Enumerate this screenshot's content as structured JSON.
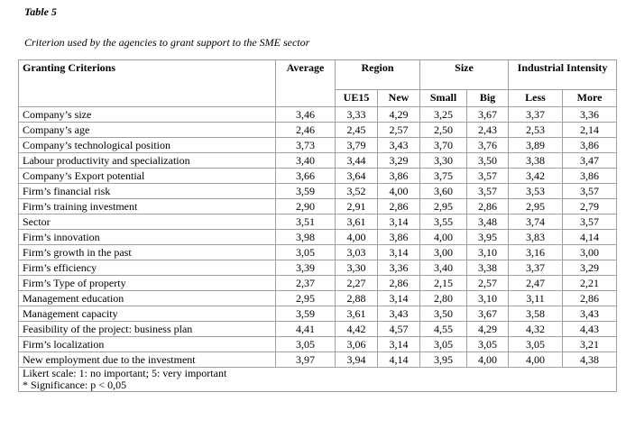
{
  "caption": {
    "title": "Table 5",
    "subtitle": "Criterion used by the agencies to grant support to the SME sector"
  },
  "header": {
    "criterion": "Granting Criterions",
    "average": "Average",
    "region": "Region",
    "size": "Size",
    "industrial": "Industrial Intensity",
    "sub": [
      "UE15",
      "New",
      "Small",
      "Big",
      "Less",
      "More"
    ]
  },
  "rows": [
    {
      "label": "Company’s size",
      "values": [
        "3,46",
        "3,33",
        "4,29",
        "3,25",
        "3,67",
        "3,37",
        "3,36"
      ]
    },
    {
      "label": "Company’s age",
      "values": [
        "2,46",
        "2,45",
        "2,57",
        "2,50",
        "2,43",
        "2,53",
        "2,14"
      ]
    },
    {
      "label": "Company’s technological position",
      "values": [
        "3,73",
        "3,79",
        "3,43",
        "3,70",
        "3,76",
        "3,89",
        "3,86"
      ]
    },
    {
      "label": "Labour productivity and specialization",
      "values": [
        "3,40",
        "3,44",
        "3,29",
        "3,30",
        "3,50",
        "3,38",
        "3,47"
      ]
    },
    {
      "label": "Company’s Export potential",
      "values": [
        "3,66",
        "3,64",
        "3,86",
        "3,75",
        "3,57",
        "3,42",
        "3,86"
      ]
    },
    {
      "label": "Firm’s financial risk",
      "values": [
        "3,59",
        "3,52",
        "4,00",
        "3,60",
        "3,57",
        "3,53",
        "3,57"
      ]
    },
    {
      "label": "Firm’s training investment",
      "values": [
        "2,90",
        "2,91",
        "2,86",
        "2,95",
        "2,86",
        "2,95",
        "2,79"
      ]
    },
    {
      "label": "Sector",
      "values": [
        "3,51",
        "3,61",
        "3,14",
        "3,55",
        "3,48",
        "3,74",
        "3,57"
      ]
    },
    {
      "label": "Firm’s innovation",
      "values": [
        "3,98",
        "4,00",
        "3,86",
        "4,00",
        "3,95",
        "3,83",
        "4,14"
      ]
    },
    {
      "label": "Firm’s growth in the past",
      "values": [
        "3,05",
        "3,03",
        "3,14",
        "3,00",
        "3,10",
        "3,16",
        "3,00"
      ]
    },
    {
      "label": "Firm’s efficiency",
      "values": [
        "3,39",
        "3,30",
        "3,36",
        "3,40",
        "3,38",
        "3,37",
        "3,29"
      ]
    },
    {
      "label": "Firm’s Type of property",
      "values": [
        "2,37",
        "2,27",
        "2,86",
        "2,15",
        "2,57",
        "2,47",
        "2,21"
      ]
    },
    {
      "label": "Management education",
      "values": [
        "2,95",
        "2,88",
        "3,14",
        "2,80",
        "3,10",
        "3,11",
        "2,86"
      ]
    },
    {
      "label": "Management capacity",
      "values": [
        "3,59",
        "3,61",
        "3,43",
        "3,50",
        "3,67",
        "3,58",
        "3,43"
      ]
    },
    {
      "label": "Feasibility of the project: business plan",
      "values": [
        "4,41",
        "4,42",
        "4,57",
        "4,55",
        "4,29",
        "4,32",
        "4,43"
      ]
    },
    {
      "label": "Firm’s localization",
      "values": [
        "3,05",
        "3,06",
        "3,14",
        "3,05",
        "3,05",
        "3,05",
        "3,21"
      ]
    },
    {
      "label": "New employment due to the investment",
      "values": [
        "3,97",
        "3,94",
        "4,14",
        "3,95",
        "4,00",
        "4,00",
        "4,38"
      ]
    }
  ],
  "footnote": {
    "line1": "Likert scale: 1: no important; 5: very important",
    "line2": "* Significance: p < 0,05"
  }
}
